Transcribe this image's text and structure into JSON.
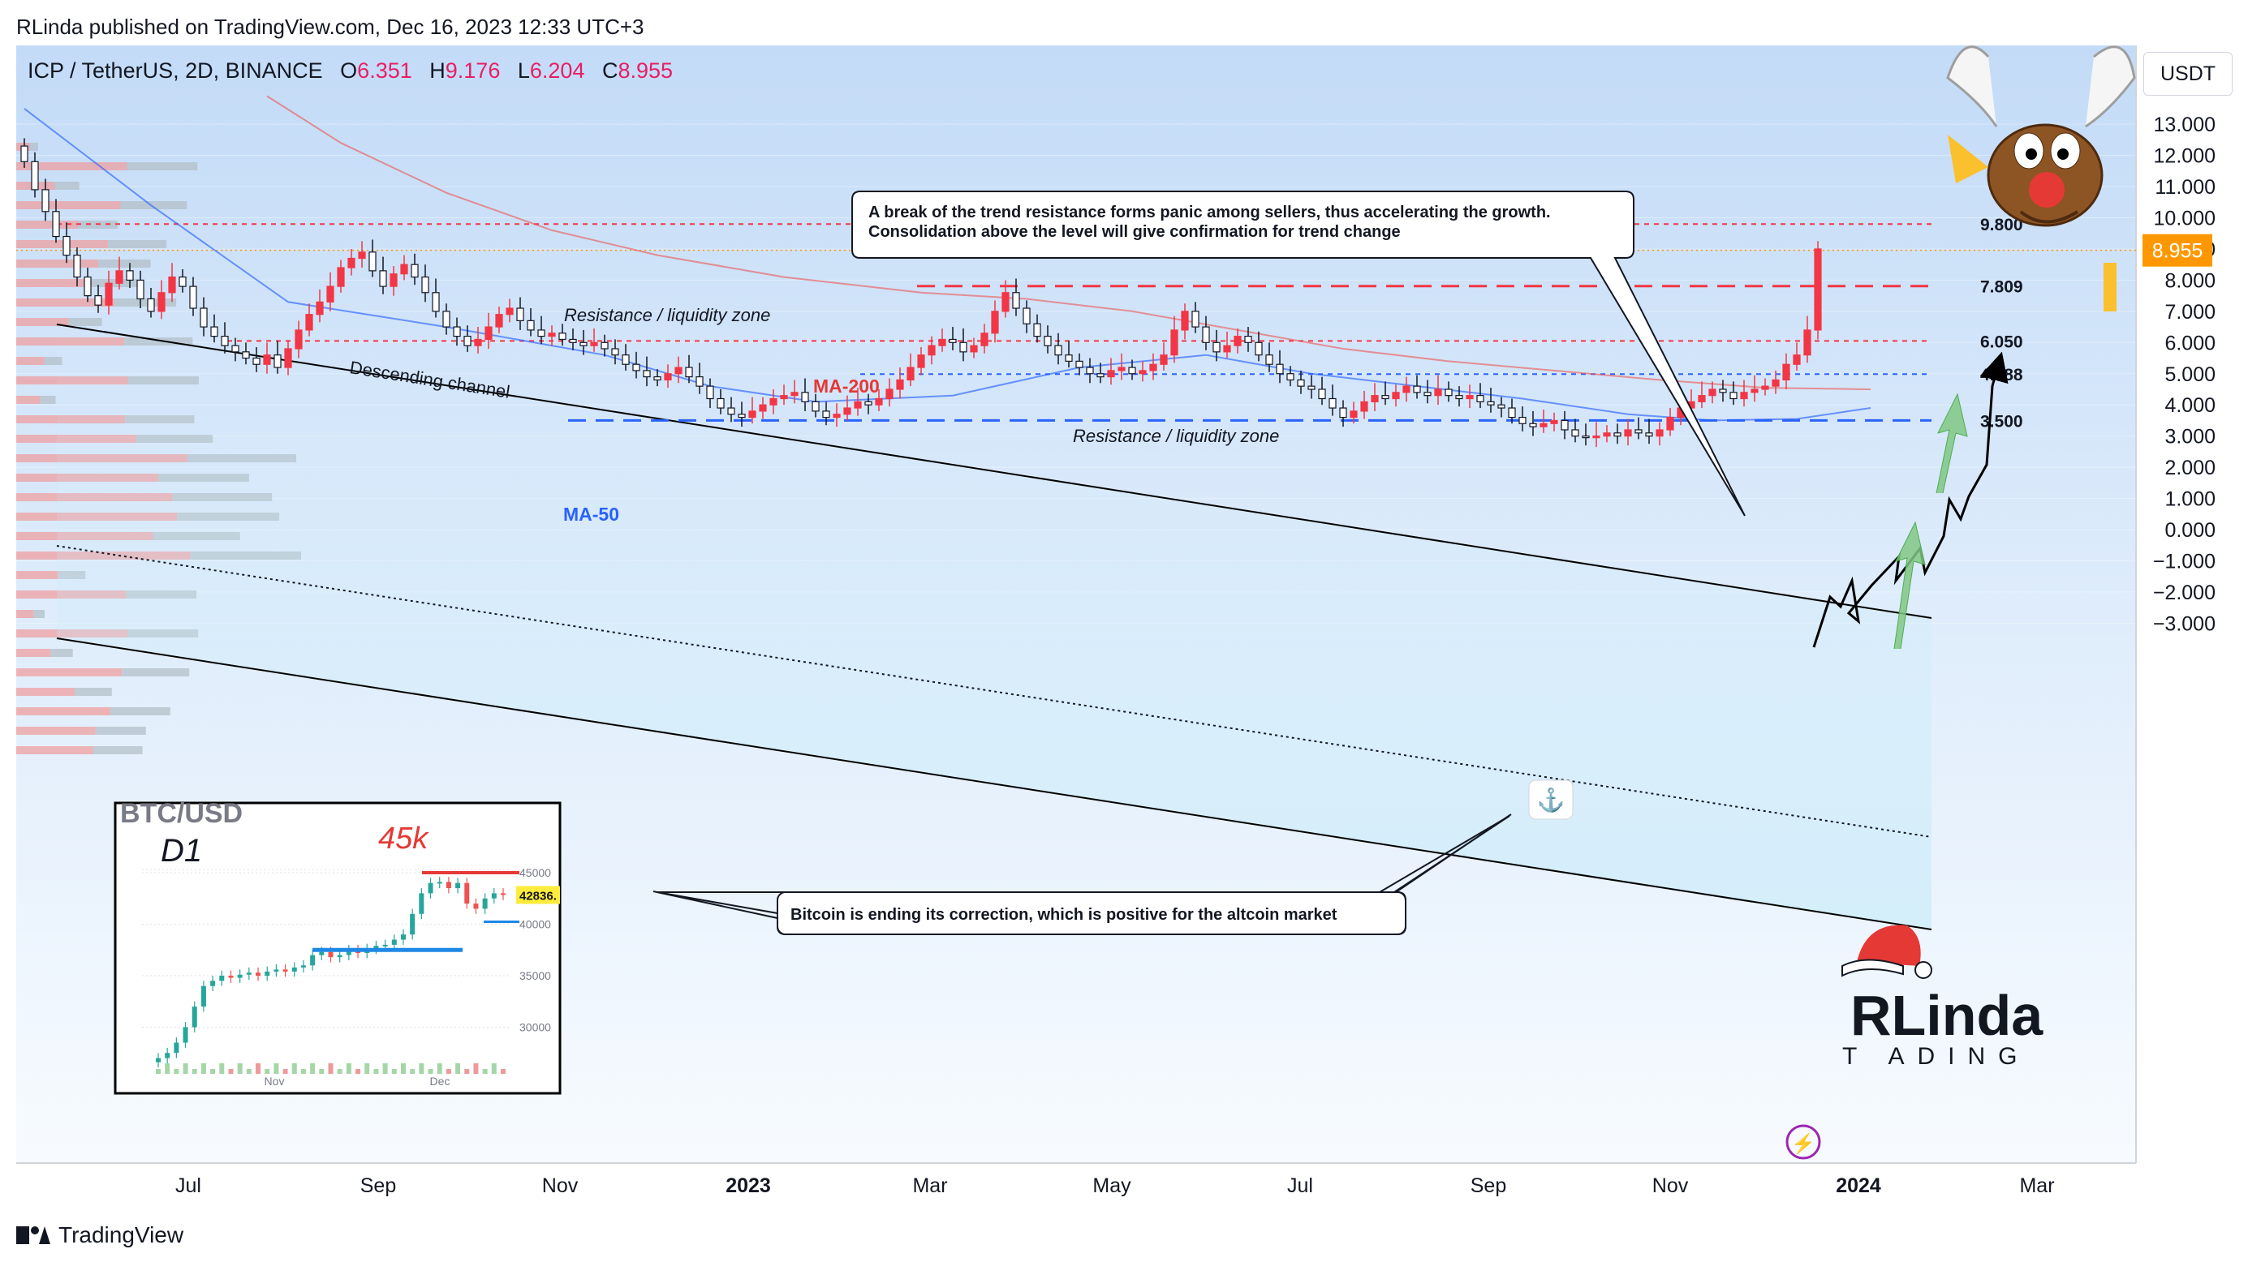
{
  "header": {
    "published": "RLinda published on TradingView.com, Dec 16, 2023 12:33 UTC+3"
  },
  "legend": {
    "symbol": "ICP / TetherUS, 2D, BINANCE",
    "o_label": "O",
    "o": "6.351",
    "h_label": "H",
    "h": "9.176",
    "l_label": "L",
    "l": "6.204",
    "c_label": "C",
    "c": "8.955"
  },
  "currency_button": "USDT",
  "footer": {
    "brand": "TradingView"
  },
  "chart_data": {
    "type": "candlestick",
    "symbol": "ICP / TetherUS",
    "timeframe": "2D",
    "exchange": "BINANCE",
    "ylim": [
      -3.0,
      13.0
    ],
    "y_ticks": [
      "13.000",
      "12.000",
      "11.000",
      "10.000",
      "9.000",
      "8.000",
      "7.000",
      "6.000",
      "5.000",
      "4.000",
      "3.000",
      "2.000",
      "1.000",
      "0.000",
      "−1.000",
      "−2.000",
      "−3.000"
    ],
    "y_tick_values": [
      13,
      12,
      11,
      10,
      9,
      8,
      7,
      6,
      5,
      4,
      3,
      2,
      1,
      0,
      -1,
      -2,
      -3
    ],
    "x_ticks": [
      {
        "label": "Jul",
        "bold": false
      },
      {
        "label": "Sep",
        "bold": false
      },
      {
        "label": "Nov",
        "bold": false
      },
      {
        "label": "2023",
        "bold": true
      },
      {
        "label": "Mar",
        "bold": false
      },
      {
        "label": "May",
        "bold": false
      },
      {
        "label": "Jul",
        "bold": false
      },
      {
        "label": "Sep",
        "bold": false
      },
      {
        "label": "Nov",
        "bold": false
      },
      {
        "label": "2024",
        "bold": true
      },
      {
        "label": "Mar",
        "bold": false
      }
    ],
    "last_price": "8.955",
    "levels": [
      {
        "value": 9.8,
        "label": "9.800",
        "style": "dashed",
        "color": "#f23645"
      },
      {
        "value": 7.809,
        "label": "7.809",
        "style": "dashed",
        "color": "#f23645"
      },
      {
        "value": 6.05,
        "label": "6.050",
        "style": "dashed",
        "color": "#f23645"
      },
      {
        "value": 4.988,
        "label": "4.988",
        "style": "dashed",
        "color": "#2962ff"
      },
      {
        "value": 3.5,
        "label": "3.500",
        "style": "dashed",
        "color": "#2962ff"
      }
    ],
    "closes": [
      11.8,
      10.9,
      10.2,
      9.4,
      8.8,
      8.1,
      7.5,
      7.2,
      7.9,
      8.3,
      8.0,
      7.4,
      7.0,
      7.6,
      8.1,
      7.8,
      7.1,
      6.5,
      6.2,
      5.9,
      5.7,
      5.5,
      5.3,
      5.6,
      5.2,
      5.8,
      6.4,
      6.9,
      7.3,
      7.8,
      8.4,
      8.7,
      8.9,
      8.3,
      7.8,
      8.2,
      8.5,
      8.1,
      7.6,
      7.0,
      6.5,
      6.2,
      5.9,
      6.1,
      6.5,
      6.9,
      7.1,
      6.7,
      6.4,
      6.2,
      6.3,
      6.1,
      6.0,
      5.9,
      6.0,
      5.8,
      5.6,
      5.3,
      5.1,
      4.9,
      4.8,
      5.0,
      5.2,
      4.9,
      4.6,
      4.2,
      3.9,
      3.7,
      3.6,
      3.8,
      4.0,
      4.2,
      4.3,
      4.4,
      4.1,
      3.8,
      3.6,
      3.7,
      3.9,
      4.1,
      4.0,
      4.2,
      4.5,
      4.8,
      5.2,
      5.6,
      5.9,
      6.1,
      6.0,
      5.7,
      5.9,
      6.3,
      7.0,
      7.6,
      7.1,
      6.6,
      6.2,
      5.9,
      5.6,
      5.4,
      5.2,
      5.0,
      4.9,
      5.1,
      5.2,
      5.0,
      5.1,
      5.3,
      5.6,
      6.4,
      7.0,
      6.5,
      6.0,
      5.7,
      5.9,
      6.2,
      6.0,
      5.6,
      5.3,
      5.0,
      4.8,
      4.6,
      4.5,
      4.2,
      3.9,
      3.6,
      3.8,
      4.1,
      4.3,
      4.2,
      4.4,
      4.6,
      4.4,
      4.3,
      4.5,
      4.3,
      4.2,
      4.3,
      4.1,
      4.0,
      3.9,
      3.6,
      3.4,
      3.3,
      3.4,
      3.5,
      3.2,
      3.0,
      2.95,
      3.0,
      3.1,
      3.0,
      3.2,
      3.1,
      3.0,
      3.2,
      3.6,
      3.9,
      4.1,
      4.3,
      4.5,
      4.4,
      4.2,
      4.4,
      4.5,
      4.6,
      4.8,
      5.3,
      5.6,
      6.4,
      9.0
    ],
    "ma50": [
      {
        "i": 0,
        "v": 13.5
      },
      {
        "i": 12,
        "v": 10.4
      },
      {
        "i": 25,
        "v": 7.3
      },
      {
        "i": 40,
        "v": 6.5
      },
      {
        "i": 55,
        "v": 5.6
      },
      {
        "i": 65,
        "v": 4.6
      },
      {
        "i": 75,
        "v": 4.1
      },
      {
        "i": 88,
        "v": 4.3
      },
      {
        "i": 100,
        "v": 5.2
      },
      {
        "i": 112,
        "v": 5.6
      },
      {
        "i": 122,
        "v": 5.0
      },
      {
        "i": 132,
        "v": 4.6
      },
      {
        "i": 142,
        "v": 4.2
      },
      {
        "i": 152,
        "v": 3.7
      },
      {
        "i": 160,
        "v": 3.5
      },
      {
        "i": 168,
        "v": 3.55
      },
      {
        "i": 175,
        "v": 3.9
      }
    ],
    "ma200": [
      {
        "i": 23,
        "v": 13.9
      },
      {
        "i": 30,
        "v": 12.4
      },
      {
        "i": 40,
        "v": 10.8
      },
      {
        "i": 50,
        "v": 9.6
      },
      {
        "i": 60,
        "v": 8.8
      },
      {
        "i": 72,
        "v": 8.1
      },
      {
        "i": 85,
        "v": 7.6
      },
      {
        "i": 95,
        "v": 7.4
      },
      {
        "i": 105,
        "v": 7.0
      },
      {
        "i": 115,
        "v": 6.4
      },
      {
        "i": 125,
        "v": 5.8
      },
      {
        "i": 135,
        "v": 5.4
      },
      {
        "i": 145,
        "v": 5.1
      },
      {
        "i": 155,
        "v": 4.8
      },
      {
        "i": 165,
        "v": 4.55
      },
      {
        "i": 175,
        "v": 4.5
      }
    ],
    "ma50_label": "MA-50",
    "ma200_label": "MA-200",
    "channel_label": "Descending channel",
    "resistance_label_1": "Resistance / liquidity zone",
    "resistance_label_2": "Resistance / liquidity zone",
    "callout_1": [
      "A break of the trend resistance forms panic among sellers, thus accelerating the growth.",
      "Consolidation above the level will give confirmation for trend change"
    ],
    "callout_2": "Bitcoin is ending its correction, which is positive for the altcoin market",
    "inset": {
      "title": "BTC/USD",
      "timeframe": "D1",
      "annotation": "45k",
      "price_tag": "42836.",
      "y_ticks": [
        "45000",
        "40000",
        "35000",
        "30000"
      ],
      "y_tick_values": [
        45000,
        40000,
        35000,
        30000
      ],
      "x_ticks": [
        "Nov",
        "Dec"
      ],
      "closes": [
        27000,
        27500,
        28500,
        30000,
        32000,
        34000,
        34500,
        35000,
        34800,
        35100,
        35300,
        35000,
        35400,
        35600,
        35400,
        35800,
        36000,
        37000,
        37300,
        36800,
        37000,
        37500,
        37200,
        37600,
        37900,
        38000,
        38500,
        39000,
        41000,
        43000,
        44000,
        44100,
        43500,
        44000,
        42000,
        41500,
        42500,
        43000,
        42836
      ],
      "support": 37500
    }
  }
}
